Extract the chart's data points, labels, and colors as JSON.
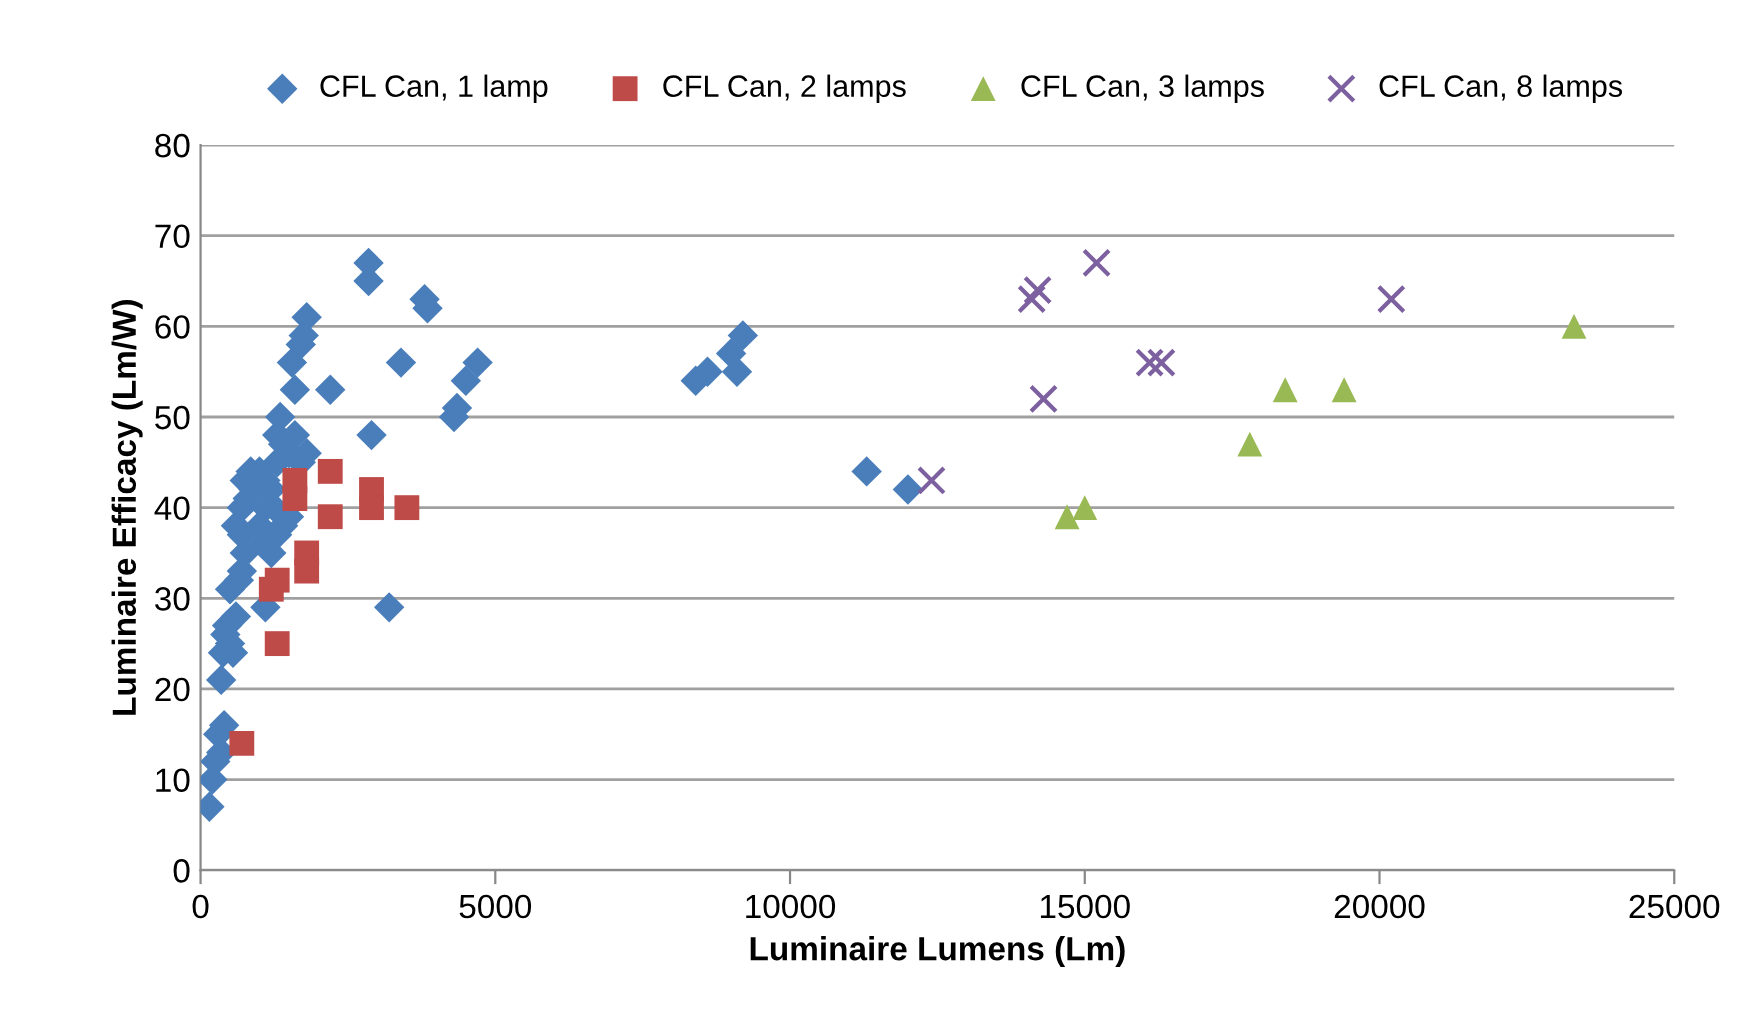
{
  "chart_data": {
    "type": "scatter",
    "xlabel": "Luminaire Lumens (Lm)",
    "ylabel": "Luminaire Efficacy (Lm/W)",
    "xlim": [
      0,
      25000
    ],
    "xticks": [
      0,
      5000,
      10000,
      15000,
      20000,
      25000
    ],
    "ylim": [
      0,
      80
    ],
    "yticks": [
      0,
      10,
      20,
      30,
      40,
      50,
      60,
      70,
      80
    ],
    "grid": "y",
    "legend": "top",
    "series": [
      {
        "name": "CFL Can, 1 lamp",
        "color": "#4a7ebb",
        "marker": "diamond",
        "x": [
          150,
          200,
          250,
          300,
          350,
          400,
          350,
          380,
          420,
          450,
          500,
          550,
          600,
          500,
          650,
          700,
          750,
          600,
          700,
          700,
          800,
          900,
          750,
          850,
          1000,
          1100,
          1000,
          1050,
          1100,
          1200,
          1250,
          1300,
          1300,
          1350,
          1400,
          1500,
          1600,
          1700,
          1800,
          1500,
          1400,
          1200,
          1100,
          1300,
          1550,
          1600,
          1700,
          1750,
          1800,
          2200,
          2850,
          2850,
          2900,
          3200,
          3400,
          3800,
          3850,
          4300,
          4350,
          4500,
          4700,
          8400,
          8600,
          9000,
          9200,
          9100,
          11300,
          12000
        ],
        "values": [
          7,
          10,
          12,
          15,
          13,
          16,
          21,
          24,
          26,
          27,
          25,
          24,
          28,
          31,
          32,
          33,
          35,
          38,
          37,
          40,
          41,
          42,
          43,
          44,
          44,
          43,
          38,
          36,
          29,
          35,
          40,
          45,
          48,
          50,
          47,
          46,
          48,
          45,
          46,
          39,
          38,
          42,
          40,
          37,
          56,
          53,
          58,
          59,
          61,
          53,
          67,
          65,
          48,
          29,
          56,
          63,
          62,
          50,
          51,
          54,
          56,
          54,
          55,
          57,
          59,
          55,
          44,
          42
        ]
      },
      {
        "name": "CFL Can, 2 lamps",
        "color": "#be4b48",
        "marker": "square",
        "x": [
          700,
          1300,
          1200,
          1300,
          1600,
          1600,
          2200,
          2200,
          1800,
          1800,
          2900,
          2900,
          3500
        ],
        "values": [
          14,
          25,
          31,
          32,
          41,
          43,
          44,
          39,
          35,
          33,
          42,
          40,
          40
        ]
      },
      {
        "name": "CFL Can, 3 lamps",
        "color": "#98b954",
        "marker": "triangle",
        "x": [
          14700,
          15000,
          17800,
          18400,
          19400,
          23300
        ],
        "values": [
          39,
          40,
          47,
          53,
          53,
          60
        ]
      },
      {
        "name": "CFL Can, 8 lamps",
        "color": "#7d60a0",
        "marker": "cross",
        "x": [
          12400,
          14100,
          14200,
          15200,
          14300,
          16100,
          16300,
          20200
        ],
        "values": [
          43,
          63,
          64,
          67,
          52,
          56,
          56,
          63
        ]
      }
    ]
  }
}
